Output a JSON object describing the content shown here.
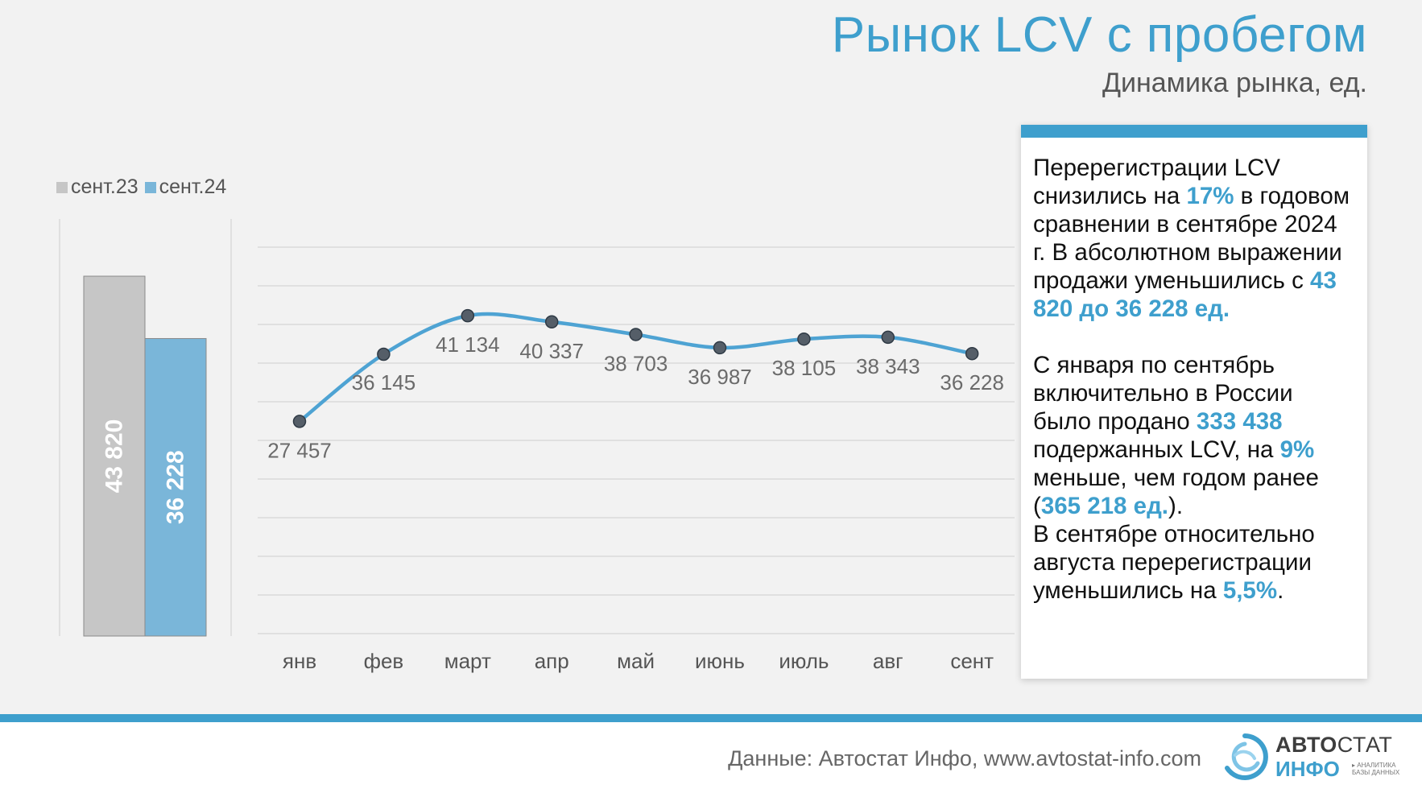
{
  "title": "Рынок LCV с пробегом",
  "subtitle": "Динамика рынка, ед.",
  "legend": {
    "a": "сент.23",
    "b": "сент.24"
  },
  "colors": {
    "accent": "#3e9fcd",
    "gray": "#c6c6c6",
    "bar_blue": "#7ab6d9",
    "line": "#4ea3d3",
    "marker": "#555e68"
  },
  "chart_data": [
    {
      "type": "bar",
      "categories": [
        "сент.23",
        "сент.24"
      ],
      "values": [
        43820,
        36228
      ],
      "labels": [
        "43 820",
        "36 228"
      ],
      "ylim": [
        0,
        50000
      ]
    },
    {
      "type": "line",
      "categories": [
        "янв",
        "фев",
        "март",
        "апр",
        "май",
        "июнь",
        "июль",
        "авг",
        "сент"
      ],
      "values": [
        27457,
        36145,
        41134,
        40337,
        38703,
        36987,
        38105,
        38343,
        36228
      ],
      "labels": [
        "27 457",
        "36 145",
        "41 134",
        "40 337",
        "38 703",
        "36 987",
        "38 105",
        "38 343",
        "36 228"
      ],
      "ylim": [
        0,
        50000
      ],
      "grid": true
    }
  ],
  "panel": {
    "p1_a": "Перерегистрации LCV снизились на ",
    "p1_pct": "17%",
    "p1_b": " в годовом сравнении в сентябре 2024 г. В абсолютном выражении продажи уменьшились с ",
    "p1_range": "43 820 до 36 228 ед.",
    "p2_a": "С января по сентябрь включительно в России было продано ",
    "p2_total": "333 438",
    "p2_b": " подержанных LCV, на ",
    "p2_pct": "9%",
    "p2_c": " меньше, чем годом ранее (",
    "p2_prev": "365 218 ед.",
    "p2_d": ").",
    "p3_a": "В сентябре относительно августа перерегистрации уменьшились на ",
    "p3_pct": "5,5%",
    "p3_b": "."
  },
  "footer": {
    "source": "Данные: Автостат Инфо, www.avtostat-info.com"
  },
  "logo": {
    "brand_bold": "АВТО",
    "brand_thin": "СТАТ",
    "sub": "ИНФО",
    "tag1": "▸ АНАЛИТИКА",
    "tag2": "БАЗЫ ДАННЫХ"
  }
}
